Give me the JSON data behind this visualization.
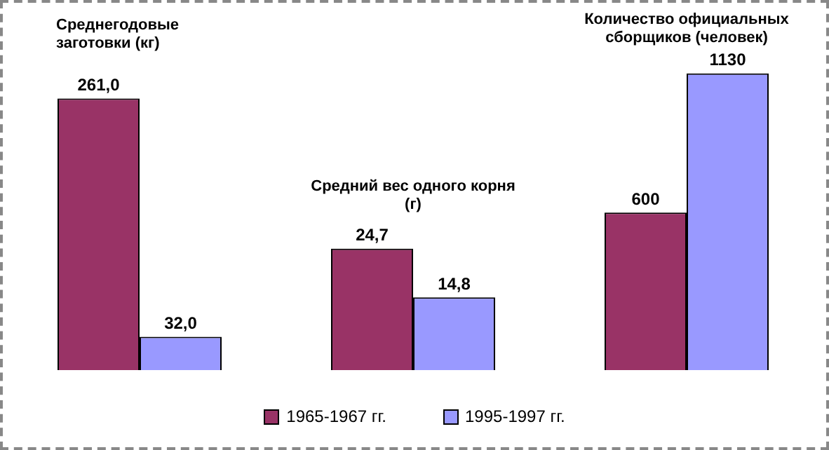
{
  "chart_data": [
    {
      "type": "bar",
      "title": "Среднегодовые заготовки (кг)",
      "categories": [
        null
      ],
      "legend": "bottom",
      "series": [
        {
          "name": "1965-1967 гг.",
          "color": "#993366",
          "values": [
            261
          ],
          "value_labels": [
            "261,0"
          ]
        },
        {
          "name": "1995-1997 гг.",
          "color": "#9999ff",
          "values": [
            32
          ],
          "value_labels": [
            "32,0"
          ]
        }
      ]
    },
    {
      "type": "bar",
      "title": "Средний вес одного корня  (г)",
      "categories": [
        null
      ],
      "series": [
        {
          "color": "#993366",
          "values": [
            24.7
          ],
          "value_labels": [
            "24,7"
          ]
        },
        {
          "color": "#9999ff",
          "values": [
            14.8
          ],
          "value_labels": [
            "14,8"
          ]
        }
      ]
    },
    {
      "type": "bar",
      "title": "Количество официальных сборщиков  (человек)",
      "categories": [
        null
      ],
      "series": [
        {
          "color": "#993366",
          "values": [
            600
          ],
          "value_labels": [
            "600"
          ]
        },
        {
          "color": "#9999ff",
          "values": [
            1130
          ],
          "value_labels": [
            "1130"
          ]
        }
      ]
    }
  ]
}
